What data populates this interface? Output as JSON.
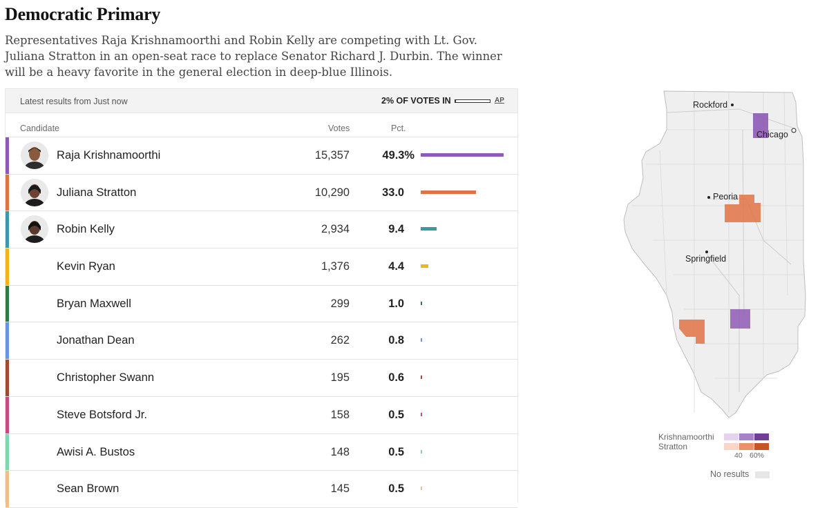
{
  "header": {
    "title": "Democratic Primary",
    "description": "Representatives Raja Krishnamoorthi and Robin Kelly are competing with Lt. Gov. Juliana Stratton in an open-seat race to replace Senator Richard J. Durbin. The winner will be a heavy favorite in the general election in deep-blue Illinois."
  },
  "results": {
    "latest": "Latest results from Just now",
    "votes_in_label": "2% OF VOTES IN",
    "votes_in_fraction": 0.02,
    "source": "AP",
    "col_candidate": "Candidate",
    "col_votes": "Votes",
    "col_pct": "Pct.",
    "candidates": [
      {
        "name": "Raja Krishnamoorthi",
        "votes": "15,357",
        "pct": "49.3%",
        "pct_value": 49.3,
        "color": "#8e5ab5",
        "photo": "avatar-photo"
      },
      {
        "name": "Juliana Stratton",
        "votes": "10,290",
        "pct": "33.0",
        "pct_value": 33.0,
        "color": "#e07245",
        "photo": "avatar-photo"
      },
      {
        "name": "Robin Kelly",
        "votes": "2,934",
        "pct": "9.4",
        "pct_value": 9.4,
        "color": "#3d97a6",
        "photo": "avatar-photo"
      },
      {
        "name": "Kevin Ryan",
        "votes": "1,376",
        "pct": "4.4",
        "pct_value": 4.4,
        "color": "#f2b41b"
      },
      {
        "name": "Bryan Maxwell",
        "votes": "299",
        "pct": "1.0",
        "pct_value": 1.0,
        "color": "#2f7a44"
      },
      {
        "name": "Jonathan Dean",
        "votes": "262",
        "pct": "0.8",
        "pct_value": 0.8,
        "color": "#6a93e0"
      },
      {
        "name": "Christopher Swann",
        "votes": "195",
        "pct": "0.6",
        "pct_value": 0.6,
        "color": "#a04a33"
      },
      {
        "name": "Steve Botsford Jr.",
        "votes": "158",
        "pct": "0.5",
        "pct_value": 0.5,
        "color": "#c7497f"
      },
      {
        "name": "Awisi A. Bustos",
        "votes": "148",
        "pct": "0.5",
        "pct_value": 0.5,
        "color": "#7fd7b0"
      },
      {
        "name": "Sean Brown",
        "votes": "145",
        "pct": "0.5",
        "pct_value": 0.5,
        "color": "#e8c28a"
      }
    ]
  },
  "map": {
    "cities": [
      "Rockford",
      "Chicago",
      "Peoria",
      "Springfield"
    ],
    "legend": {
      "krishnamoorthi_label": "Krishnamoorthi",
      "stratton_label": "Stratton",
      "tick_40": "40",
      "tick_60": "60%",
      "krishnamoorthi_colors": [
        "#e4d2f0",
        "#a781c9",
        "#6f3f96"
      ],
      "stratton_colors": [
        "#fbd6c6",
        "#e9916b",
        "#c8542a"
      ],
      "no_results_label": "No results",
      "no_results_color": "#e6e6e6"
    }
  }
}
